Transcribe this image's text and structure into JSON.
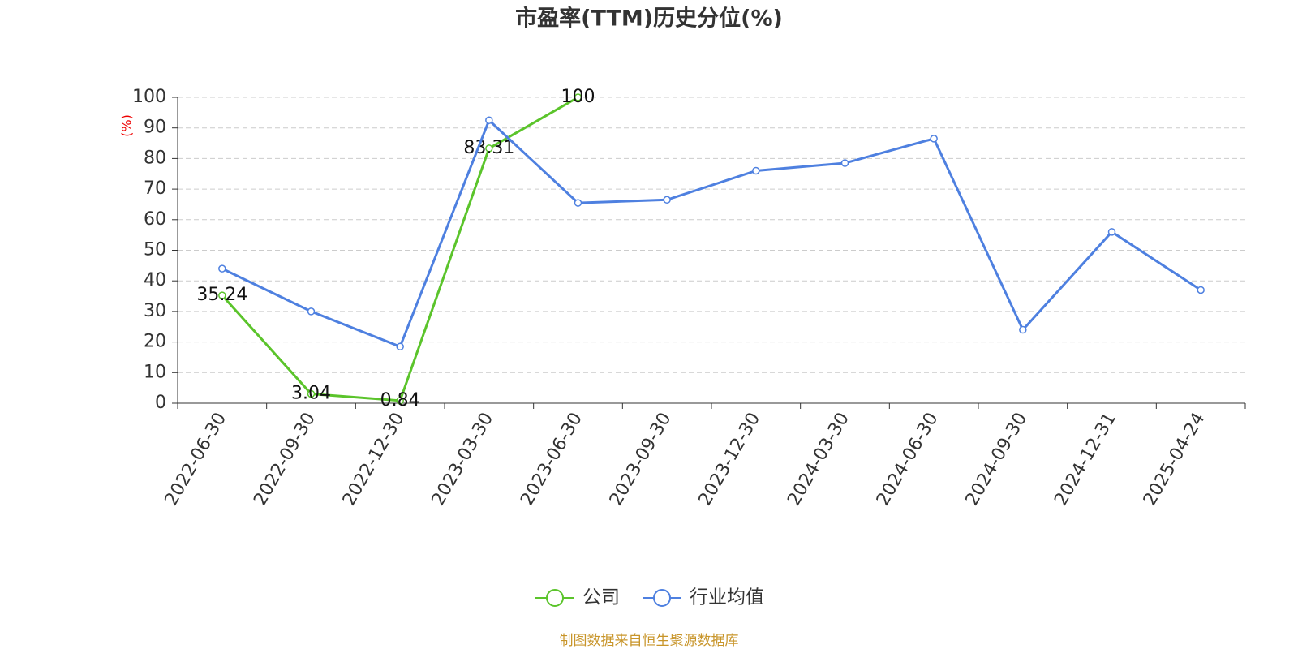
{
  "chart_data": {
    "type": "line",
    "title": "市盈率(TTM)历史分位(%)",
    "y_label": "(%)",
    "categories": [
      "2022-06-30",
      "2022-09-30",
      "2022-12-30",
      "2023-03-30",
      "2023-06-30",
      "2023-09-30",
      "2023-12-30",
      "2024-03-30",
      "2024-06-30",
      "2024-09-30",
      "2024-12-31",
      "2025-04-24"
    ],
    "series": [
      {
        "name": "公司",
        "color": "#5bc42b",
        "show_labels": true,
        "values": [
          35.24,
          3.04,
          0.84,
          83.31,
          100,
          null,
          null,
          null,
          null,
          null,
          null,
          null
        ]
      },
      {
        "name": "行业均值",
        "color": "#4e80e0",
        "show_labels": false,
        "values": [
          44,
          30,
          18.5,
          92.5,
          65.5,
          66.5,
          76,
          78.5,
          86.5,
          24,
          56,
          37
        ]
      }
    ],
    "ylim": [
      0,
      100
    ],
    "yticks": [
      0,
      10,
      20,
      30,
      40,
      50,
      60,
      70,
      80,
      90,
      100
    ],
    "grid": true,
    "source": "制图数据来自恒生聚源数据库"
  }
}
